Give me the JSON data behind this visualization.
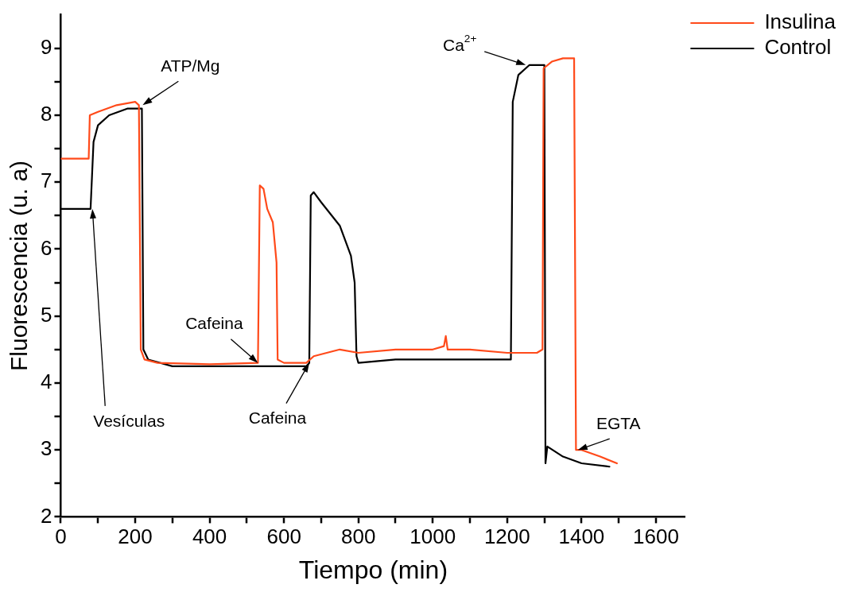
{
  "chart_data": {
    "type": "line",
    "xlabel": "Tiempo (min)",
    "ylabel": "Fluorescencia (u. a)",
    "xlim": [
      0,
      1680
    ],
    "ylim": [
      2,
      9.5
    ],
    "xticks": [
      0,
      {
        "value": 100,
        "label": null
      },
      200,
      {
        "value": 300,
        "label": null
      },
      400,
      {
        "value": 500,
        "label": null
      },
      600,
      {
        "value": 700,
        "label": null
      },
      800,
      {
        "value": 900,
        "label": null
      },
      1000,
      {
        "value": 1100,
        "label": null
      },
      1200,
      {
        "value": 1300,
        "label": null
      },
      1400,
      {
        "value": 1500,
        "label": null
      },
      1600
    ],
    "yticks": [
      2,
      {
        "value": 2.5,
        "label": null
      },
      3,
      {
        "value": 3.5,
        "label": null
      },
      4,
      {
        "value": 4.5,
        "label": null
      },
      5,
      {
        "value": 5.5,
        "label": null
      },
      6,
      {
        "value": 6.5,
        "label": null
      },
      7,
      {
        "value": 7.5,
        "label": null
      },
      8,
      {
        "value": 8.5,
        "label": null
      },
      9
    ],
    "grid": false,
    "legend": "top right",
    "marker": "none",
    "line_style": "solid",
    "series": [
      {
        "name": "Insulina",
        "color": "#ff4a1a",
        "x": [
          0,
          75,
          78,
          100,
          150,
          200,
          210,
          215,
          225,
          260,
          400,
          530,
          535,
          545,
          555,
          570,
          580,
          583,
          600,
          660,
          680,
          750,
          800,
          900,
          1000,
          1030,
          1035,
          1040,
          1100,
          1200,
          1280,
          1295,
          1298,
          1320,
          1350,
          1380,
          1385,
          1400,
          1450,
          1495
        ],
        "values": [
          7.35,
          7.35,
          8.0,
          8.05,
          8.15,
          8.2,
          8.15,
          4.5,
          4.35,
          4.3,
          4.28,
          4.3,
          6.95,
          6.9,
          6.6,
          6.4,
          5.8,
          4.35,
          4.3,
          4.3,
          4.4,
          4.5,
          4.45,
          4.5,
          4.5,
          4.55,
          4.7,
          4.5,
          4.5,
          4.45,
          4.45,
          4.5,
          8.7,
          8.8,
          8.85,
          8.85,
          3.0,
          3.0,
          2.9,
          2.8
        ]
      },
      {
        "name": "Control",
        "color": "#000000",
        "x": [
          0,
          80,
          88,
          100,
          130,
          180,
          218,
          222,
          235,
          300,
          500,
          660,
          668,
          672,
          680,
          700,
          750,
          780,
          790,
          795,
          800,
          900,
          1000,
          1100,
          1210,
          1215,
          1230,
          1260,
          1300,
          1303,
          1308,
          1350,
          1400,
          1475
        ],
        "values": [
          6.6,
          6.6,
          7.6,
          7.85,
          8.0,
          8.1,
          8.1,
          4.5,
          4.35,
          4.25,
          4.25,
          4.25,
          4.3,
          6.8,
          6.85,
          6.7,
          6.35,
          5.9,
          5.5,
          4.4,
          4.3,
          4.35,
          4.35,
          4.35,
          4.35,
          8.2,
          8.6,
          8.75,
          8.75,
          2.8,
          3.05,
          2.9,
          2.8,
          2.75
        ]
      }
    ],
    "annotations": [
      {
        "text": "ATP/Mg",
        "x": 220,
        "y": 8.15
      },
      {
        "text": "Vesículas",
        "x": 85,
        "y": 6.6
      },
      {
        "text": "Cafeina",
        "x": 530,
        "y": 4.3
      },
      {
        "text": "Cafeina",
        "x": 668,
        "y": 4.3
      },
      {
        "text": "Ca$^{2+}$",
        "x": 1250,
        "y": 8.75
      },
      {
        "text": "EGTA",
        "x": 1390,
        "y": 3.0
      }
    ]
  }
}
